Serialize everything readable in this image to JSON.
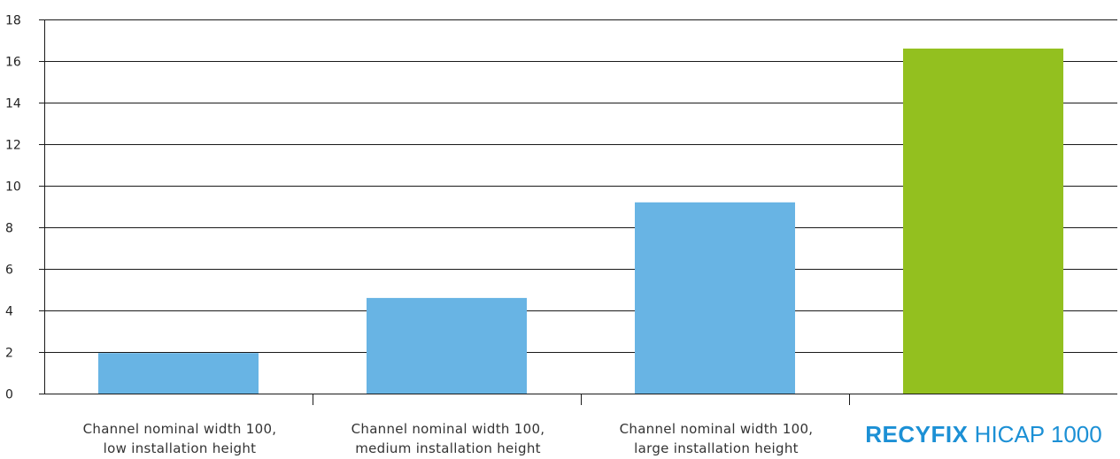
{
  "chart_data": {
    "type": "bar",
    "categories": [
      [
        "Channel nominal width 100,",
        "low installation height"
      ],
      [
        "Channel nominal width 100,",
        "medium installation height"
      ],
      [
        "Channel nominal width 100,",
        "large installation height"
      ],
      [
        "RECYFIX",
        "HICAP 1000"
      ]
    ],
    "values": [
      1.95,
      4.6,
      9.2,
      16.6
    ],
    "colors": [
      "#68b4e4",
      "#68b4e4",
      "#68b4e4",
      "#93c01f"
    ],
    "ylim": [
      0,
      18
    ],
    "yticks": [
      "0",
      "2",
      "4",
      "6",
      "8",
      "10",
      "12",
      "14",
      "16",
      "18"
    ],
    "grid": true,
    "title": "",
    "xlabel": "",
    "ylabel": ""
  },
  "brand_color": "#1c90d5"
}
